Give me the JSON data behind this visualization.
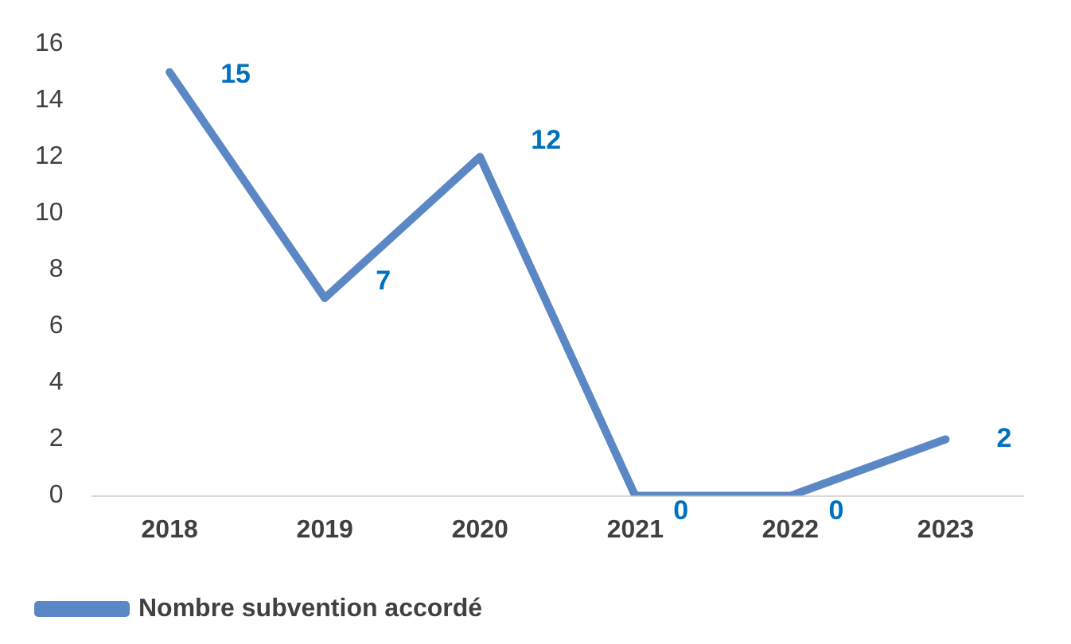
{
  "chart_data": {
    "type": "line",
    "categories": [
      "2018",
      "2019",
      "2020",
      "2021",
      "2022",
      "2023"
    ],
    "series": [
      {
        "name": "Nombre subvention accordé",
        "color": "#5b87c5",
        "values": [
          15,
          7,
          12,
          0,
          0,
          2
        ]
      }
    ],
    "ylim": [
      0,
      16
    ],
    "yticks": [
      0,
      2,
      4,
      6,
      8,
      10,
      12,
      14,
      16
    ],
    "grid": false,
    "legend": "bottom left",
    "marker": "none",
    "line_style": "solid",
    "data_labels": true
  }
}
